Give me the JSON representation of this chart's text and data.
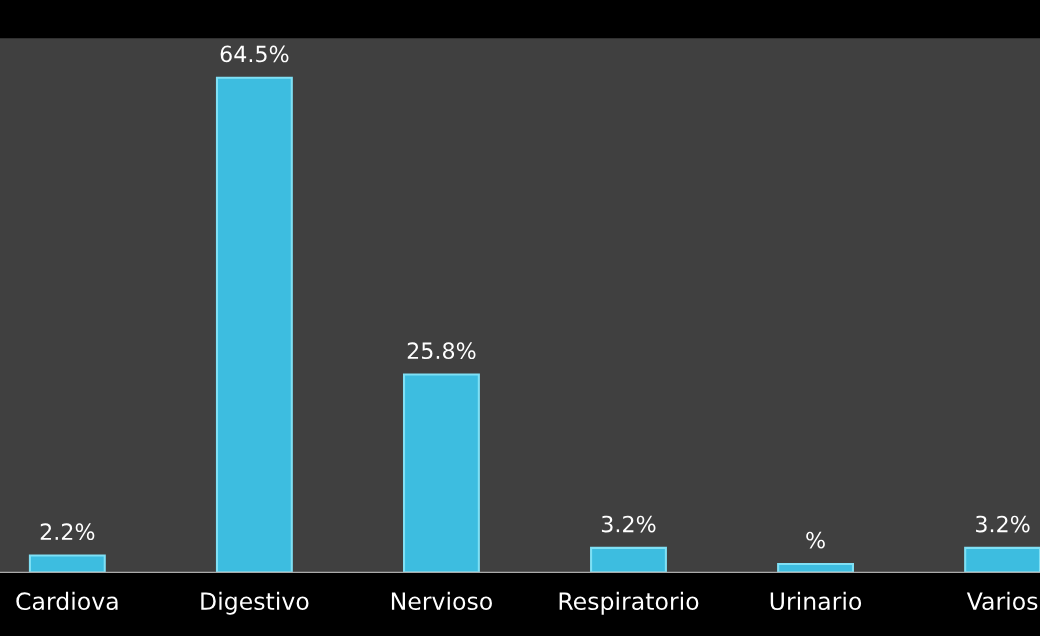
{
  "chart_data": {
    "type": "bar",
    "categories": [
      "Cardiova",
      "Digestivo",
      "Nervioso",
      "Respiratorio",
      "Urinario",
      "Varios"
    ],
    "values": [
      2.2,
      64.5,
      25.8,
      3.2,
      1.1,
      3.2
    ],
    "value_labels": [
      "2.2%",
      "64.5%",
      "25.8%",
      "3.2%",
      "%",
      "3.2%"
    ],
    "color": "#3dbde0",
    "tick_labels": "x",
    "grid": false,
    "legend": false
  }
}
